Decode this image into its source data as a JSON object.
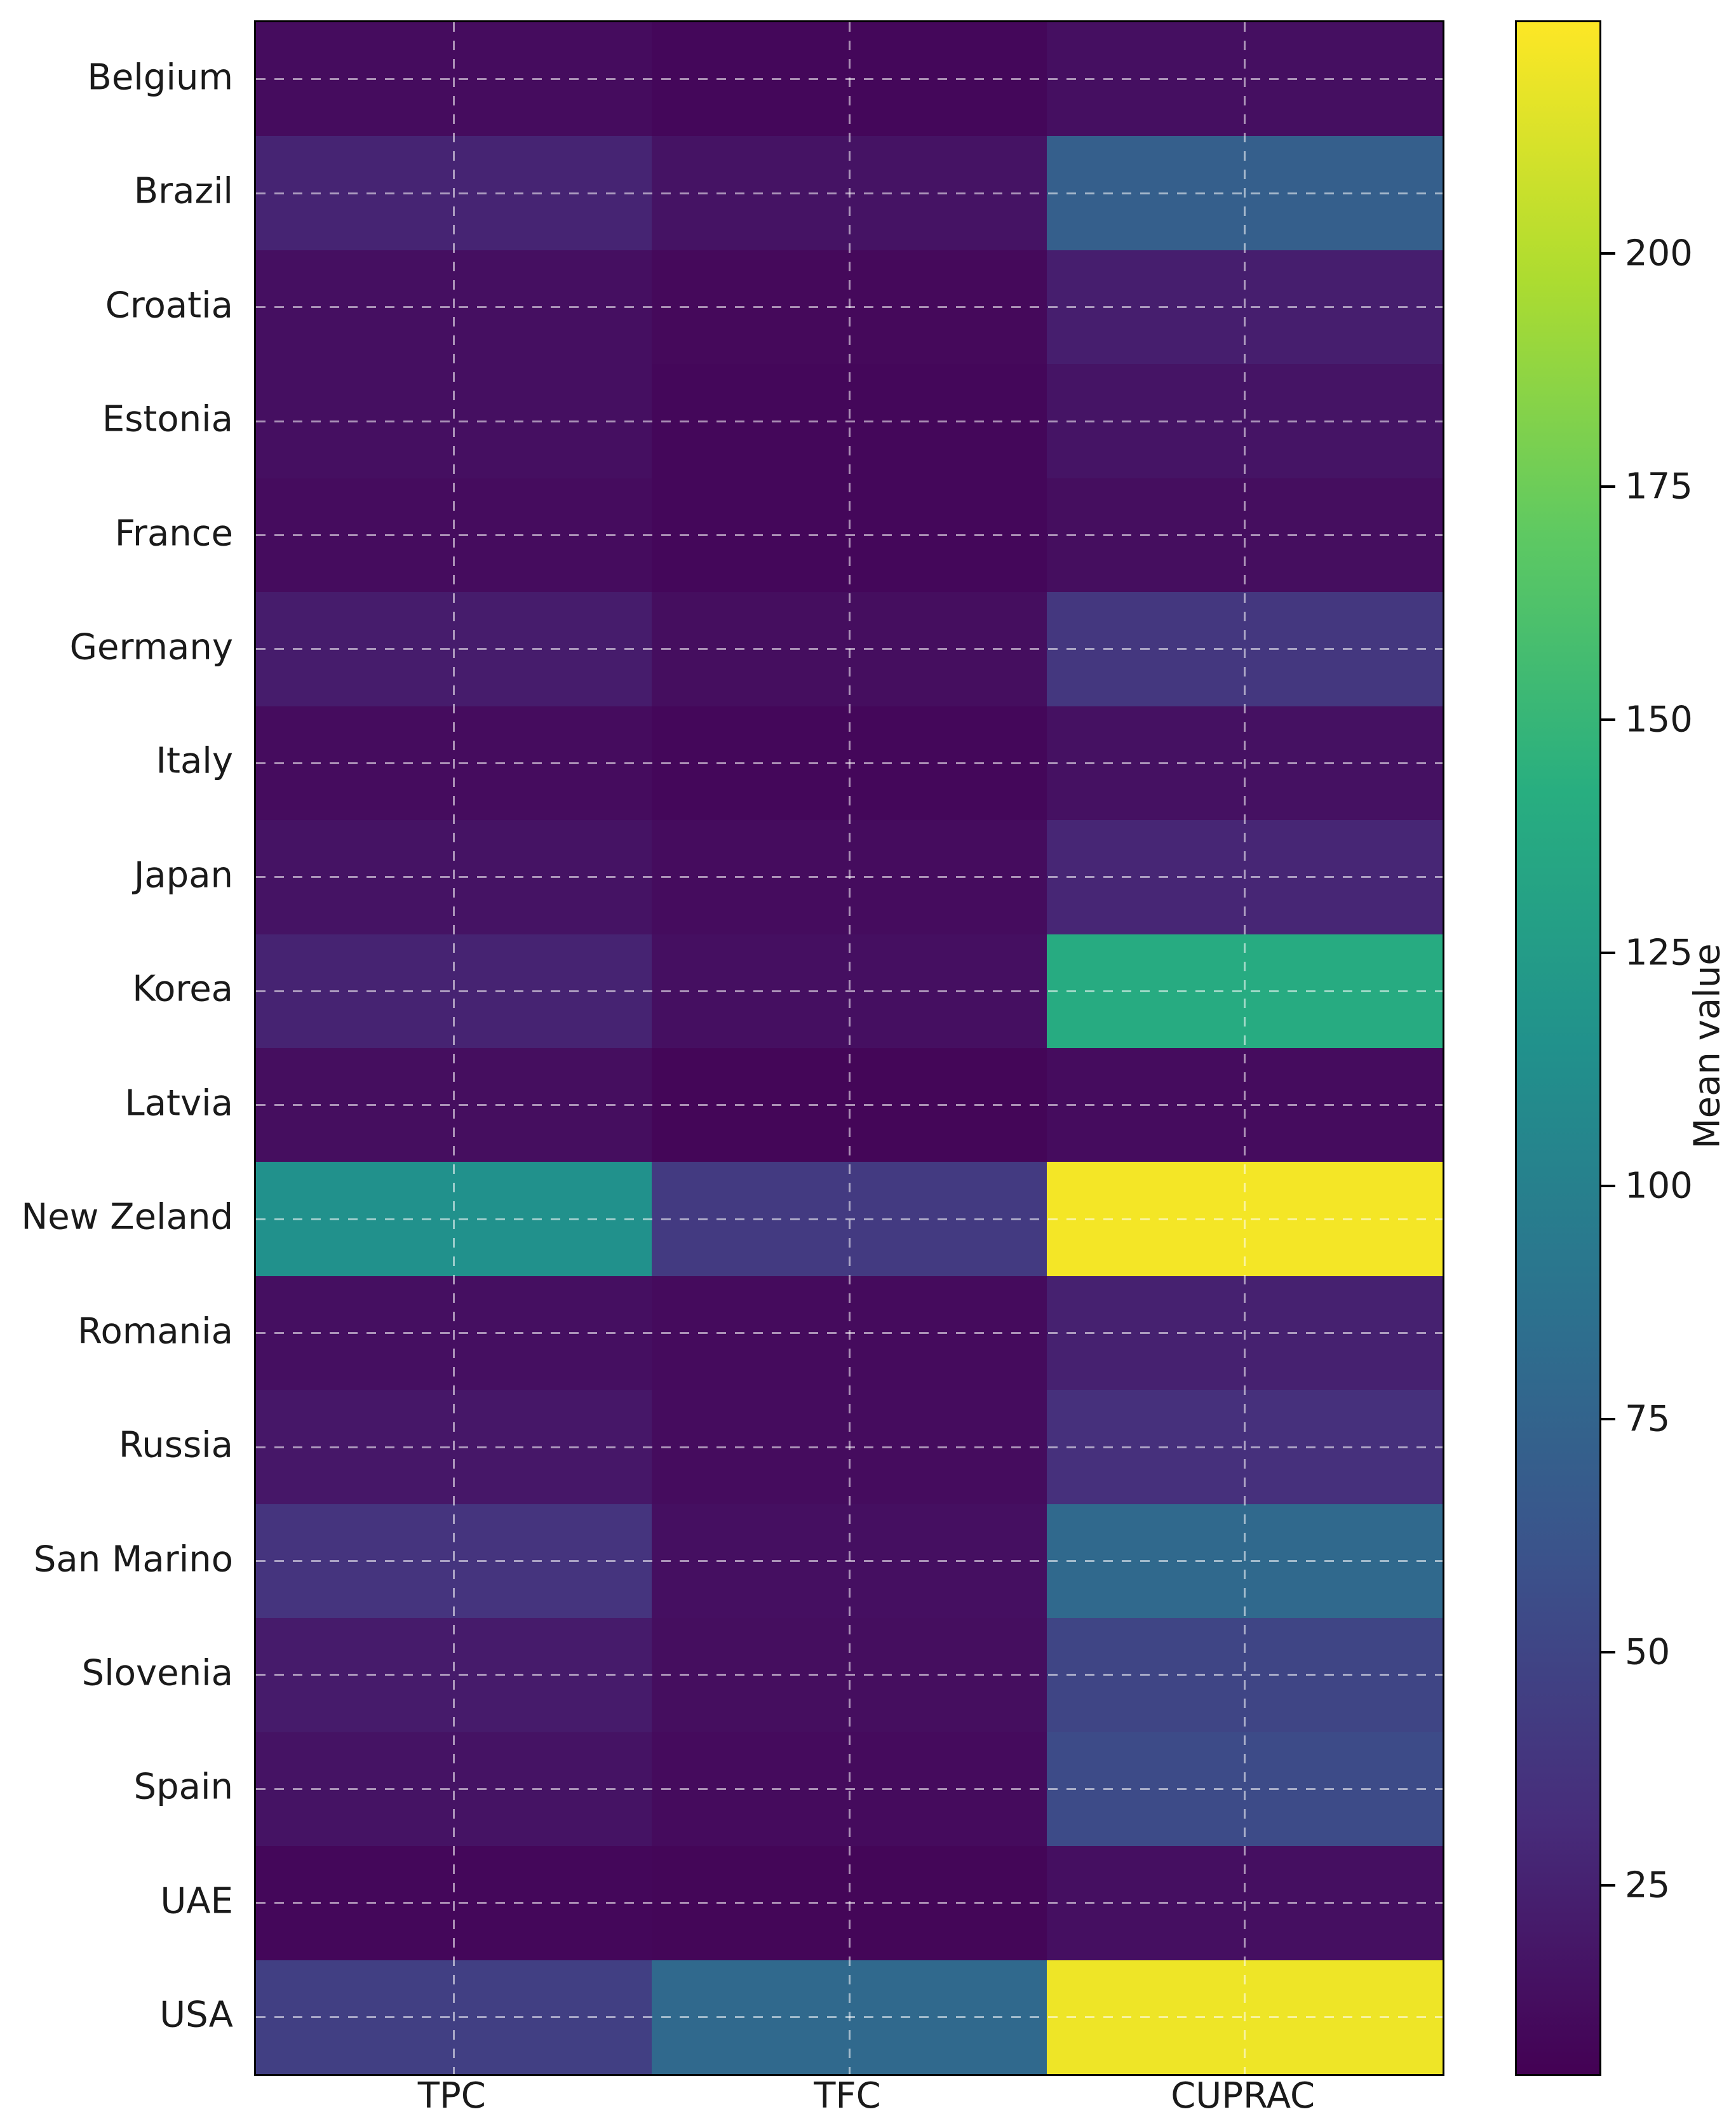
{
  "figure": {
    "background": "#ffffff"
  },
  "chart_data": {
    "type": "heatmap",
    "colormap": "viridis",
    "rows": [
      "Belgium",
      "Brazil",
      "Croatia",
      "Estonia",
      "France",
      "Germany",
      "Italy",
      "Japan",
      "Korea",
      "Latvia",
      "New Zeland",
      "Romania",
      "Russia",
      "San Marino",
      "Slovenia",
      "Spain",
      "UAE",
      "USA"
    ],
    "columns": [
      "TPC",
      "TFC",
      "CUPRAC"
    ],
    "values": [
      [
        12,
        9,
        14
      ],
      [
        27,
        16,
        71
      ],
      [
        14,
        10,
        23
      ],
      [
        14,
        9,
        17
      ],
      [
        12,
        9,
        13
      ],
      [
        22,
        13,
        40
      ],
      [
        12,
        9,
        15
      ],
      [
        16,
        12,
        28
      ],
      [
        26,
        14,
        140
      ],
      [
        13,
        8,
        12
      ],
      [
        115,
        42,
        222
      ],
      [
        14,
        11,
        25
      ],
      [
        19,
        12,
        35
      ],
      [
        38,
        14,
        80
      ],
      [
        21,
        13,
        50
      ],
      [
        16,
        11,
        55
      ],
      [
        9,
        8,
        14
      ],
      [
        46,
        80,
        220
      ]
    ],
    "vmin": 5,
    "vmax": 225,
    "grid": true,
    "gridline_color": "rgba(255,255,255,0.55)",
    "colorbar": {
      "label": "Mean value",
      "ticks": [
        25,
        50,
        75,
        100,
        125,
        150,
        175,
        200
      ],
      "position": "right"
    },
    "colormap_stops": [
      [
        0.0,
        [
          68,
          1,
          84
        ]
      ],
      [
        0.125,
        [
          71,
          45,
          123
        ]
      ],
      [
        0.25,
        [
          59,
          82,
          139
        ]
      ],
      [
        0.375,
        [
          44,
          114,
          142
        ]
      ],
      [
        0.5,
        [
          33,
          145,
          140
        ]
      ],
      [
        0.625,
        [
          40,
          174,
          128
        ]
      ],
      [
        0.75,
        [
          94,
          201,
          98
        ]
      ],
      [
        0.875,
        [
          173,
          220,
          48
        ]
      ],
      [
        1.0,
        [
          253,
          231,
          37
        ]
      ]
    ]
  }
}
